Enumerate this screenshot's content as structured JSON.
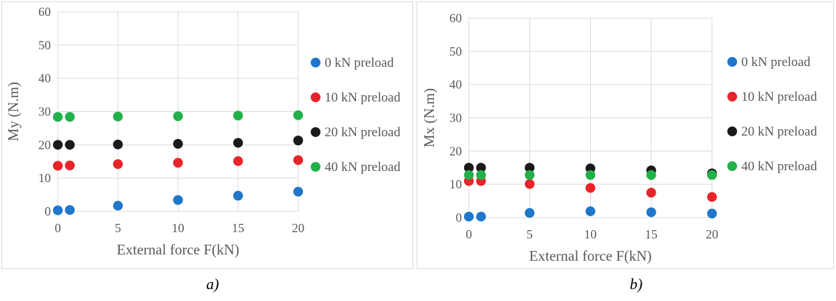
{
  "chart_data": [
    {
      "type": "scatter",
      "panel_label": "a)",
      "xlabel": "External force F(kN)",
      "ylabel": "My (N.m)",
      "xlim": [
        0,
        20
      ],
      "ylim": [
        0,
        60
      ],
      "x_ticks": [
        0,
        5,
        10,
        15,
        20
      ],
      "y_ticks": [
        0,
        10,
        20,
        30,
        40,
        50,
        60
      ],
      "grid": true,
      "legend_position": "right",
      "x": [
        0,
        1,
        5,
        10,
        15,
        20
      ],
      "series": [
        {
          "name": "0 kN preload",
          "color": "#1f77c9",
          "values": [
            0.3,
            0.4,
            1.7,
            3.4,
            4.7,
            5.9
          ]
        },
        {
          "name": "10 kN preload",
          "color": "#e8232a",
          "values": [
            13.7,
            13.8,
            14.2,
            14.6,
            15.1,
            15.4
          ]
        },
        {
          "name": "20 kN preload",
          "color": "#1a1a1a",
          "values": [
            20.0,
            20.0,
            20.1,
            20.3,
            20.6,
            21.3
          ]
        },
        {
          "name": "40 kN preload",
          "color": "#22b04a",
          "values": [
            28.4,
            28.4,
            28.5,
            28.6,
            28.8,
            28.9
          ]
        }
      ]
    },
    {
      "type": "scatter",
      "panel_label": "b)",
      "xlabel": "External force F(kN)",
      "ylabel": "Mx (N.m)",
      "xlim": [
        0,
        20
      ],
      "ylim": [
        0,
        60
      ],
      "x_ticks": [
        0,
        5,
        10,
        15,
        20
      ],
      "y_ticks": [
        0,
        10,
        20,
        30,
        40,
        50,
        60
      ],
      "grid": true,
      "legend_position": "right",
      "x": [
        0,
        1,
        5,
        10,
        15,
        20
      ],
      "series": [
        {
          "name": "0 kN preload",
          "color": "#1f77c9",
          "values": [
            0.3,
            0.3,
            1.4,
            1.9,
            1.6,
            1.2
          ]
        },
        {
          "name": "10 kN preload",
          "color": "#e8232a",
          "values": [
            11.0,
            11.0,
            10.1,
            8.9,
            7.5,
            6.2
          ]
        },
        {
          "name": "20 kN preload",
          "color": "#1a1a1a",
          "values": [
            15.0,
            15.0,
            15.0,
            14.8,
            14.2,
            13.3
          ]
        },
        {
          "name": "40 kN preload",
          "color": "#22b04a",
          "values": [
            12.8,
            12.8,
            12.8,
            12.8,
            12.8,
            12.8
          ]
        }
      ]
    }
  ]
}
